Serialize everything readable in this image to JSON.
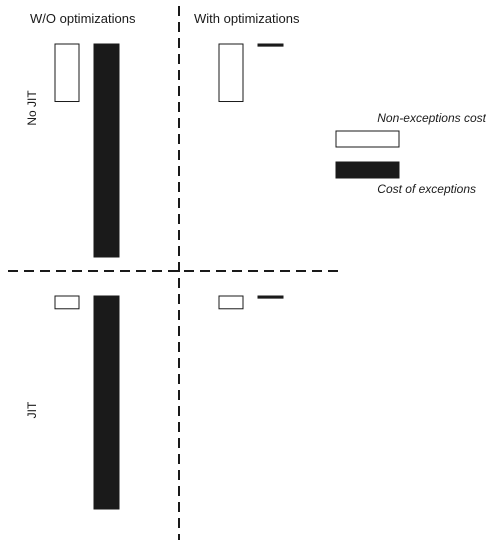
{
  "chart_data": {
    "type": "bar",
    "columns": [
      "W/O optimizations",
      "With optimizations"
    ],
    "rows": [
      "No JIT",
      "JIT"
    ],
    "series": [
      {
        "name": "Non-exceptions cost",
        "fill": "#ffffff",
        "stroke": "#1a1a1a",
        "values": [
          [
            0.27,
            0.27
          ],
          [
            0.06,
            0.06
          ]
        ]
      },
      {
        "name": "Cost of exceptions",
        "fill": "#1a1a1a",
        "stroke": "#1a1a1a",
        "values": [
          [
            1.0,
            0.01
          ],
          [
            1.0,
            0.01
          ]
        ]
      }
    ],
    "ylim": [
      0,
      1
    ],
    "grid": false,
    "legend_position": "right",
    "separators": "dashed"
  }
}
